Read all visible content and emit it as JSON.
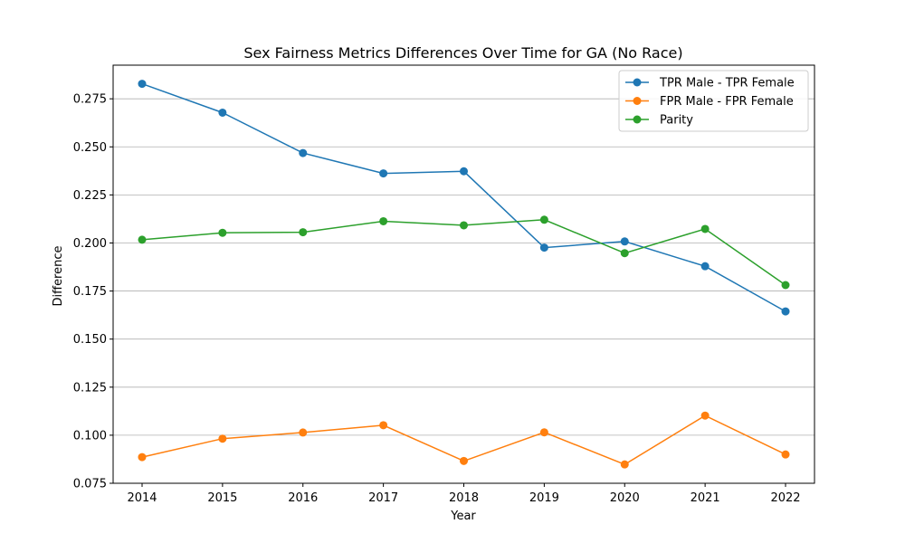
{
  "chart_data": {
    "type": "line",
    "title": "Sex Fairness Metrics Differences Over Time for GA (No Race)",
    "xlabel": "Year",
    "ylabel": "Difference",
    "x": [
      2014,
      2015,
      2016,
      2017,
      2018,
      2019,
      2020,
      2021,
      2022
    ],
    "x_tick_labels": [
      "2014",
      "2015",
      "2016",
      "2017",
      "2018",
      "2019",
      "2020",
      "2021",
      "2022"
    ],
    "ylim": [
      0.075,
      0.2925
    ],
    "y_ticks": [
      0.075,
      0.1,
      0.125,
      0.15,
      0.175,
      0.2,
      0.225,
      0.25,
      0.275
    ],
    "y_tick_labels": [
      "0.075",
      "0.100",
      "0.125",
      "0.150",
      "0.175",
      "0.200",
      "0.225",
      "0.250",
      "0.275"
    ],
    "grid": "horizontal",
    "legend_position": "top-right",
    "series": [
      {
        "name": "TPR Male - TPR Female",
        "color": "#1f77b4",
        "values": [
          0.2828,
          0.2678,
          0.2468,
          0.2362,
          0.2373,
          0.1976,
          0.2008,
          0.1879,
          0.1644
        ]
      },
      {
        "name": "FPR Male - FPR Female",
        "color": "#ff7f0e",
        "values": [
          0.0886,
          0.0982,
          0.1014,
          0.1052,
          0.0866,
          0.1015,
          0.0848,
          0.1102,
          0.09
        ]
      },
      {
        "name": "Parity",
        "color": "#2ca02c",
        "values": [
          0.2017,
          0.2053,
          0.2056,
          0.2113,
          0.2092,
          0.2121,
          0.1947,
          0.2073,
          0.1781
        ]
      }
    ]
  }
}
